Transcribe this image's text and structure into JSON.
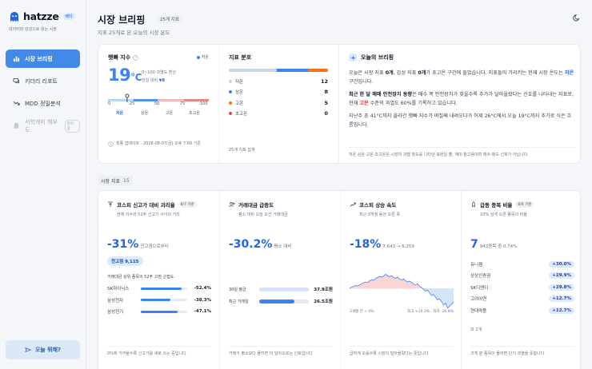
{
  "brand": {
    "name": "hatzze",
    "badge": "베타",
    "tagline": "데이터와 감성으로 읽는 시장"
  },
  "nav": [
    {
      "label": "시장 브리핑",
      "icon": "chart-bar-icon",
      "active": true
    },
    {
      "label": "키더리 리포트",
      "icon": "chat-icon"
    },
    {
      "label": "MDD 정밀분석",
      "icon": "trend-down-icon"
    },
    {
      "label": "서학개미 해부도",
      "icon": "ghost-icon",
      "badge": "준비 중",
      "disabled": true
    }
  ],
  "today_button": "오늘 뭐해?",
  "header": {
    "title": "시장 브리핑",
    "count": "25개 지표",
    "subtitle": "지표 25개로 본 오늘의 시장 온도"
  },
  "fear_greed": {
    "title": "햇빠 지수",
    "legend": "저온",
    "value": "19",
    "unit": "°C",
    "note_line1": "0~100 과열도 환산",
    "note_line2_prefix": "전일 대비 ",
    "note_trend": "▼8",
    "needle_value": 19,
    "scale": [
      "0",
      "25",
      "50",
      "75",
      "100"
    ],
    "categories": [
      "저온",
      "상온",
      "고온",
      "초고온"
    ],
    "updated": "최종 업데이트 · 2026-08-07(금) 오후 7:00 기준"
  },
  "distribution": {
    "title": "지표 분포",
    "rows": [
      {
        "name": "저온",
        "count": "12",
        "color": "#cbd5e1"
      },
      {
        "name": "상온",
        "count": "8",
        "color": "#3b82f6"
      },
      {
        "name": "고온",
        "count": "5",
        "color": "#f97316"
      },
      {
        "name": "초고온",
        "count": "0",
        "color": "#ef4444"
      }
    ],
    "footer": "25개 지표 집계"
  },
  "briefing": {
    "title": "오늘의 브리핑",
    "p1_a": "오늘은 시장 지표 ",
    "p1_b": "0개",
    "p1_c": ", 감성 지표 ",
    "p1_d": "0개",
    "p1_e": "가 초고온 구간에 들었습니다. 지표들이 가리키는 현재 시장 온도는 ",
    "p1_f": "저온",
    "p1_g": " 구간입니다.",
    "p2_a": "최근 한 달 매매 안전장치 동향",
    "p2_b": "은 매수 쪽 안전장치가 잦을수록 추가가 달아올랐다는 신호를 나타내는 지표로, 현재 ",
    "p2_c": "고온",
    "p2_d": " 수준의 과열도 60%를 기록하고 있습니다.",
    "p3": "지난주 초 41°C까지 올라간 햇빠 지수가 며칠째 내려오다가 어제 26°C에서 오늘 19°C까지 추가로 식은 흐름입니다.",
    "footer": "저온·상온·고온·초고온은 시장의 과열 정도를 나타낸 표현일 뿐, 재미·참고용이며 매수·매도 신호가 아닙니다."
  },
  "section": {
    "label": "시장 지표",
    "count": "15"
  },
  "cards": {
    "kospi_gap": {
      "title": "코스피 신고가 대비 괴리율",
      "tag": "8/7 기준",
      "subtitle": "현재 지수와 52주 신고가 사이의 거리",
      "value": "-31",
      "value_unit": "%",
      "value_note": "전고점으로부터",
      "pill": "전고점 9,115",
      "caption": "거래대금 상위 종목의 52주 고점 근접도",
      "rows": [
        {
          "name": "SK하이닉스",
          "value": "-52.4%",
          "pct": 52.4
        },
        {
          "name": "삼성전자",
          "value": "-38.3%",
          "pct": 38.3
        },
        {
          "name": "삼성전기",
          "value": "-47.1%",
          "pct": 47.1
        }
      ],
      "footer": "0%에 가까울수록 신고가를 새로 쓰는 중입니다"
    },
    "volume": {
      "title": "거래대금 급증도",
      "subtitle": "평소 대비 오늘 오간 거래대금",
      "value": "-30.2",
      "value_unit": "%",
      "value_note": "평소 대비",
      "rows": [
        {
          "name": "30일 평균",
          "value": "37.9조원",
          "pct": 100
        },
        {
          "name": "최근 거래일",
          "value": "26.5조원",
          "pct": 70
        }
      ],
      "footer": "거래가 평소보다 몰리면 더 달아오르는 신호입니다"
    },
    "kospi_speed": {
      "title": "코스피 상승 속도",
      "subtitle": "최근 3개월 동안 오른 폭",
      "value": "-18",
      "value_unit": "%",
      "value_note": "7,643 → 6,259",
      "cap_left": "3개월 전 ÷ 0%",
      "cap_right": "최고 +19.3% · 최저 -26.8%",
      "series": [
        0.5,
        1.8,
        3.0,
        4.2,
        3.5,
        5.0,
        6.5,
        7.8,
        9.0,
        8.2,
        10.5,
        12.0,
        11.0,
        13.5,
        15.0,
        16.5,
        15.5,
        17.0,
        19.3,
        17.5,
        16.0,
        17.5,
        15.0,
        14.0,
        15.5,
        13.0,
        11.5,
        13.0,
        10.5,
        9.0,
        10.0,
        8.5,
        6.0,
        5.0,
        6.5,
        3.0,
        1.5,
        -1.0,
        -3.5,
        -2.0,
        -6.0,
        -9.5,
        -8.0,
        -12.0,
        -15.5,
        -14.0,
        -18.0,
        -22.5,
        -20.0,
        -26.8,
        -24.0,
        -21.5,
        -18.0
      ],
      "footer": "급하게 오를수록 시장이 달아올랐다는 뜻입니다"
    },
    "surge": {
      "title": "급등 종목 비율",
      "tag": "8/6 기준",
      "subtitle": "10% 넘게 오른 종목의 비율",
      "value": "7",
      "value_note": "943종목 중 0.74%",
      "rows": [
        {
          "name": "유니켐",
          "value": "+30.0%"
        },
        {
          "name": "상상인증권",
          "value": "+29.9%"
        },
        {
          "name": "SK디앤디",
          "value": "+29.8%"
        },
        {
          "name": "고려아연",
          "value": "+12.7%"
        },
        {
          "name": "현대약품",
          "value": "+12.7%"
        }
      ],
      "more": "외 2개",
      "footer": "크게 뛴 종목이 몰리면 단기 과열을 뜻합니다"
    }
  }
}
